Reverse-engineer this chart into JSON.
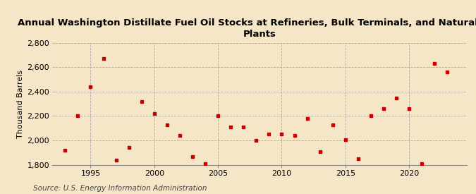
{
  "title": "Annual Washington Distillate Fuel Oil Stocks at Refineries, Bulk Terminals, and Natural Gas\nPlants",
  "ylabel": "Thousand Barrels",
  "source": "Source: U.S. Energy Information Administration",
  "background_color": "#f5e6c8",
  "plot_bg_color": "#f5e6c8",
  "marker_color": "#cc0000",
  "years": [
    1993,
    1994,
    1995,
    1996,
    1997,
    1998,
    1999,
    2000,
    2001,
    2002,
    2003,
    2004,
    2005,
    2006,
    2007,
    2008,
    2009,
    2010,
    2011,
    2012,
    2013,
    2014,
    2015,
    2016,
    2017,
    2018,
    2019,
    2020,
    2021,
    2022,
    2023
  ],
  "values": [
    1920,
    2200,
    2440,
    2670,
    1840,
    1940,
    2320,
    2220,
    2130,
    2040,
    1870,
    1810,
    2200,
    2110,
    2110,
    2000,
    2050,
    2050,
    2040,
    2180,
    1910,
    2130,
    2005,
    1850,
    2200,
    2260,
    2345,
    2260,
    1810,
    2630,
    2560
  ],
  "xlim": [
    1992,
    2024.5
  ],
  "ylim": [
    1800,
    2800
  ],
  "yticks": [
    1800,
    2000,
    2200,
    2400,
    2600,
    2800
  ],
  "xticks": [
    1995,
    2000,
    2005,
    2010,
    2015,
    2020
  ],
  "grid_color": "#aaaaaa",
  "title_fontsize": 9.5,
  "axis_fontsize": 8,
  "source_fontsize": 7.5
}
